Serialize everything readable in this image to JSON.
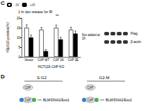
{
  "panel_labels": [
    "C",
    "D"
  ],
  "chart_data": {
    "type": "bar",
    "y_label": "H3pS10 positive(%)",
    "x_label": "HCT116 CtIP KO",
    "categories": [
      "Vector",
      "CtIP WT",
      "CtIP 3A",
      "CtIP 3E"
    ],
    "series": [
      {
        "name": "-IR",
        "color": "#ffffff",
        "values": [
          15,
          14,
          15,
          14
        ],
        "errors": [
          1.5,
          1.2,
          1.4,
          1.3
        ]
      },
      {
        "name": "+IR",
        "color": "#000000",
        "values": [
          10,
          3,
          9,
          12
        ],
        "errors": [
          1.2,
          0.8,
          1.1,
          1.3
        ]
      }
    ],
    "ylim": [
      0,
      20
    ],
    "yticks": [
      0,
      5,
      10,
      15,
      20
    ],
    "legend": "top-left",
    "grid": false,
    "data_labels": false,
    "annotations": [
      "1 hr dox release for IR",
      "**",
      "Not added at 2h"
    ]
  },
  "blot": {
    "rows": [
      "Flag",
      "β-actin"
    ]
  },
  "diagram": {
    "columns": [
      {
        "title": "S-G2",
        "items": [
          "CtIP",
          "CtIP",
          "BLM/DNA2/Exo1"
        ]
      },
      {
        "title": "G2-M",
        "items": [
          "CtIP",
          "CtIP",
          "BLM/DNA2/Exo1"
        ]
      }
    ]
  }
}
